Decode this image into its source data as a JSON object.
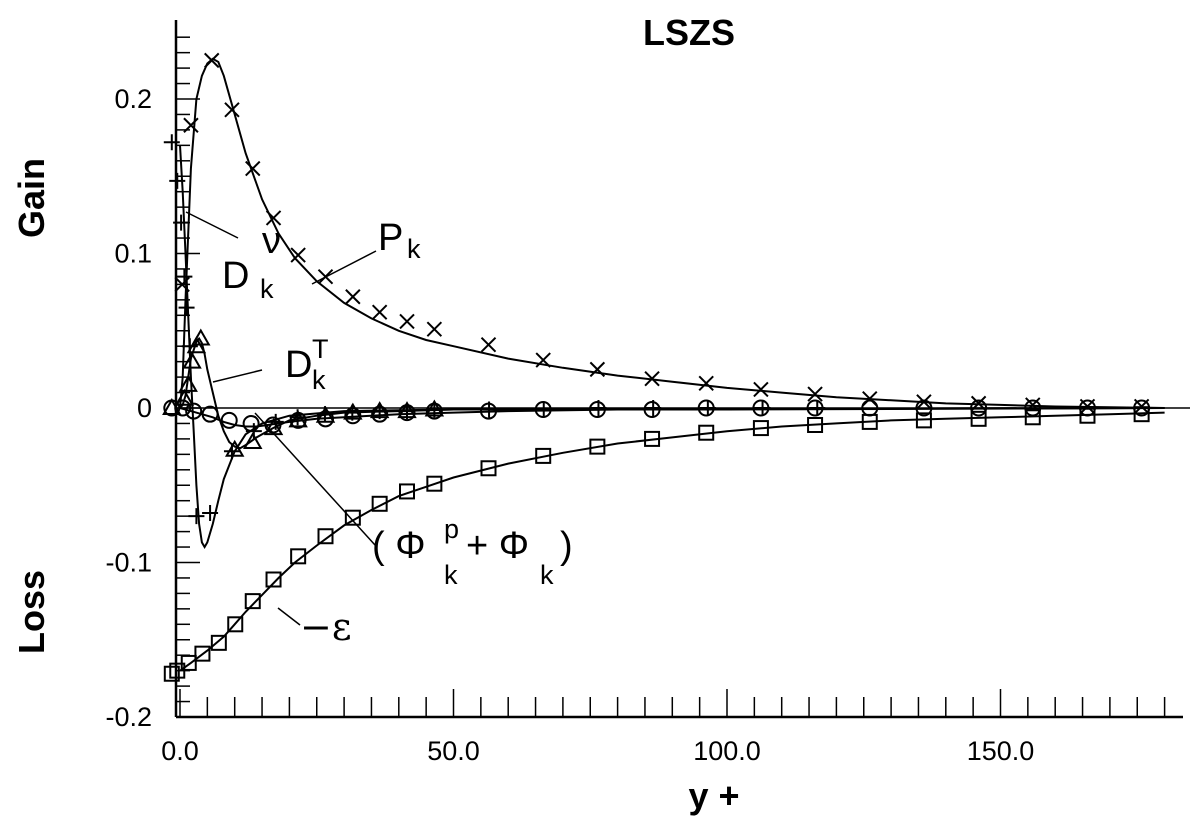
{
  "chart_data": {
    "type": "line",
    "title": "LSZS",
    "xlabel": "y +",
    "ylabel_top": "Gain",
    "ylabel_bottom": "Loss",
    "xlim": [
      -2,
      182
    ],
    "ylim": [
      -0.2,
      0.245
    ],
    "x_ticks": [
      0,
      50,
      100,
      150
    ],
    "x_tick_labels": [
      "0.0",
      "50.0",
      "100.0",
      "150.0"
    ],
    "y_ticks": [
      -0.2,
      -0.1,
      0,
      0.1,
      0.2
    ],
    "y_tick_labels": [
      "-0.2",
      "-0.1",
      "0",
      "0.1",
      "0.2"
    ],
    "grid": false,
    "series": [
      {
        "name": "P_k",
        "marker": "x",
        "curve": [
          [
            0,
            0
          ],
          [
            0.5,
            0.02
          ],
          [
            1,
            0.07
          ],
          [
            2,
            0.155
          ],
          [
            3,
            0.2
          ],
          [
            4,
            0.215
          ],
          [
            5,
            0.223
          ],
          [
            6,
            0.226
          ],
          [
            7,
            0.224
          ],
          [
            8,
            0.215
          ],
          [
            10,
            0.19
          ],
          [
            12,
            0.165
          ],
          [
            15,
            0.135
          ],
          [
            18,
            0.113
          ],
          [
            21,
            0.097
          ],
          [
            25,
            0.082
          ],
          [
            30,
            0.068
          ],
          [
            35,
            0.058
          ],
          [
            40,
            0.05
          ],
          [
            45,
            0.044
          ],
          [
            50,
            0.04
          ],
          [
            60,
            0.032
          ],
          [
            70,
            0.026
          ],
          [
            80,
            0.021
          ],
          [
            90,
            0.017
          ],
          [
            100,
            0.013
          ],
          [
            110,
            0.01
          ],
          [
            120,
            0.007
          ],
          [
            130,
            0.005
          ],
          [
            140,
            0.003
          ],
          [
            150,
            0.002
          ],
          [
            160,
            0.001
          ],
          [
            170,
            0.0005
          ],
          [
            180,
            0
          ]
        ],
        "points": [
          [
            0.4,
            0.08
          ],
          [
            2,
            0.183
          ],
          [
            5.8,
            0.225
          ],
          [
            9.5,
            0.193
          ],
          [
            13.3,
            0.155
          ],
          [
            17.1,
            0.123
          ],
          [
            21.6,
            0.099
          ],
          [
            26.6,
            0.085
          ],
          [
            31.6,
            0.072
          ],
          [
            36.5,
            0.062
          ],
          [
            41.5,
            0.056
          ],
          [
            46.5,
            0.051
          ],
          [
            56.4,
            0.041
          ],
          [
            66.4,
            0.031
          ],
          [
            76.3,
            0.025
          ],
          [
            86.3,
            0.019
          ],
          [
            96.2,
            0.016
          ],
          [
            106.2,
            0.012
          ],
          [
            116.1,
            0.009
          ],
          [
            126.1,
            0.006
          ],
          [
            136,
            0.004
          ],
          [
            146,
            0.003
          ],
          [
            155.9,
            0.002
          ],
          [
            165.9,
            0.001
          ],
          [
            175.8,
            0.001
          ]
        ]
      },
      {
        "name": "D_k^ν",
        "marker": "+",
        "curve": [
          [
            0,
            0.17
          ],
          [
            0.5,
            0.14
          ],
          [
            1,
            0.1
          ],
          [
            1.5,
            0.06
          ],
          [
            2,
            0.02
          ],
          [
            2.5,
            -0.015
          ],
          [
            3,
            -0.05
          ],
          [
            3.5,
            -0.075
          ],
          [
            4,
            -0.087
          ],
          [
            4.5,
            -0.09
          ],
          [
            5,
            -0.087
          ],
          [
            6,
            -0.075
          ],
          [
            7,
            -0.06
          ],
          [
            8,
            -0.046
          ],
          [
            10,
            -0.028
          ],
          [
            12,
            -0.017
          ],
          [
            15,
            -0.01
          ],
          [
            20,
            -0.005
          ],
          [
            30,
            -0.002
          ],
          [
            50,
            -0.001
          ],
          [
            180,
            0
          ]
        ],
        "points": [
          [
            -1.5,
            0.172
          ],
          [
            -0.5,
            0.147
          ],
          [
            0.2,
            0.12
          ],
          [
            0.8,
            0.085
          ],
          [
            1.2,
            0.065
          ],
          [
            1.8,
            0.04
          ],
          [
            3,
            -0.07
          ],
          [
            5.5,
            -0.068
          ],
          [
            9.5,
            -0.028
          ],
          [
            13.5,
            -0.015
          ],
          [
            17.5,
            -0.009
          ],
          [
            21.5,
            -0.006
          ],
          [
            26.5,
            -0.004
          ],
          [
            31.5,
            -0.003
          ],
          [
            36.5,
            -0.002
          ],
          [
            41.5,
            -0.002
          ],
          [
            46.5,
            -0.001
          ],
          [
            56.5,
            -0.001
          ],
          [
            66.5,
            -0.001
          ],
          [
            76.5,
            0
          ],
          [
            86.5,
            0
          ],
          [
            96.5,
            0
          ],
          [
            106.5,
            0
          ],
          [
            116.5,
            0
          ]
        ]
      },
      {
        "name": "D_k^T",
        "marker": "triangle",
        "curve": [
          [
            0,
            0
          ],
          [
            0.5,
            0.002
          ],
          [
            1,
            0.008
          ],
          [
            1.5,
            0.02
          ],
          [
            2,
            0.032
          ],
          [
            3,
            0.043
          ],
          [
            3.5,
            0.045
          ],
          [
            4,
            0.042
          ],
          [
            4.5,
            0.035
          ],
          [
            5,
            0.025
          ],
          [
            6,
            0.01
          ],
          [
            7,
            -0.005
          ],
          [
            8,
            -0.015
          ],
          [
            9,
            -0.022
          ],
          [
            10,
            -0.025
          ],
          [
            11,
            -0.026
          ],
          [
            12,
            -0.024
          ],
          [
            14,
            -0.019
          ],
          [
            17,
            -0.013
          ],
          [
            20,
            -0.008
          ],
          [
            25,
            -0.005
          ],
          [
            30,
            -0.003
          ],
          [
            40,
            -0.002
          ],
          [
            50,
            -0.001
          ],
          [
            180,
            0
          ]
        ],
        "points": [
          [
            -1.5,
            0
          ],
          [
            0.8,
            0.006
          ],
          [
            1.5,
            0.015
          ],
          [
            2.2,
            0.03
          ],
          [
            3,
            0.04
          ],
          [
            3.8,
            0.045
          ],
          [
            10,
            -0.027
          ],
          [
            13.3,
            -0.022
          ],
          [
            17.1,
            -0.013
          ],
          [
            21.6,
            -0.008
          ],
          [
            26.6,
            -0.005
          ],
          [
            31.6,
            -0.003
          ],
          [
            36.5,
            -0.002
          ],
          [
            41.5,
            -0.002
          ],
          [
            46.5,
            -0.001
          ]
        ]
      },
      {
        "name": "(Φ_k^p + Φ_k)",
        "marker": "circle",
        "curve": [
          [
            0,
            0
          ],
          [
            2,
            -0.002
          ],
          [
            4,
            -0.004
          ],
          [
            6,
            -0.006
          ],
          [
            8,
            -0.009
          ],
          [
            10,
            -0.011
          ],
          [
            12,
            -0.012
          ],
          [
            14,
            -0.012
          ],
          [
            16,
            -0.011
          ],
          [
            18,
            -0.01
          ],
          [
            20,
            -0.009
          ],
          [
            25,
            -0.007
          ],
          [
            30,
            -0.006
          ],
          [
            40,
            -0.004
          ],
          [
            50,
            -0.003
          ],
          [
            60,
            -0.002
          ],
          [
            80,
            -0.001
          ],
          [
            100,
            -0.001
          ],
          [
            180,
            0
          ]
        ],
        "points": [
          [
            -1.5,
            0
          ],
          [
            0.5,
            0
          ],
          [
            2.5,
            -0.002
          ],
          [
            5.5,
            -0.004
          ],
          [
            9,
            -0.008
          ],
          [
            13,
            -0.01
          ],
          [
            17,
            -0.011
          ],
          [
            21.6,
            -0.008
          ],
          [
            26.6,
            -0.007
          ],
          [
            31.6,
            -0.005
          ],
          [
            36.5,
            -0.004
          ],
          [
            41.5,
            -0.003
          ],
          [
            46.5,
            -0.002
          ],
          [
            56.4,
            -0.002
          ],
          [
            66.4,
            -0.001
          ],
          [
            76.3,
            -0.001
          ],
          [
            86.3,
            -0.001
          ],
          [
            96.2,
            0
          ],
          [
            106.2,
            0
          ],
          [
            116.1,
            0
          ],
          [
            126.1,
            0
          ],
          [
            136,
            0
          ],
          [
            146,
            0
          ],
          [
            155.9,
            0
          ],
          [
            165.9,
            0
          ],
          [
            175.8,
            0
          ]
        ]
      },
      {
        "name": "−ε",
        "marker": "square",
        "curve": [
          [
            0,
            -0.17
          ],
          [
            2,
            -0.165
          ],
          [
            5,
            -0.157
          ],
          [
            8,
            -0.148
          ],
          [
            10,
            -0.14
          ],
          [
            12,
            -0.132
          ],
          [
            15,
            -0.121
          ],
          [
            18,
            -0.11
          ],
          [
            21,
            -0.1
          ],
          [
            25,
            -0.089
          ],
          [
            30,
            -0.076
          ],
          [
            35,
            -0.066
          ],
          [
            40,
            -0.057
          ],
          [
            45,
            -0.051
          ],
          [
            50,
            -0.045
          ],
          [
            60,
            -0.036
          ],
          [
            70,
            -0.029
          ],
          [
            80,
            -0.023
          ],
          [
            90,
            -0.019
          ],
          [
            100,
            -0.015
          ],
          [
            110,
            -0.012
          ],
          [
            120,
            -0.01
          ],
          [
            130,
            -0.008
          ],
          [
            140,
            -0.007
          ],
          [
            150,
            -0.006
          ],
          [
            160,
            -0.005
          ],
          [
            170,
            -0.004
          ],
          [
            180,
            -0.003
          ]
        ],
        "points": [
          [
            -1.5,
            -0.172
          ],
          [
            -0.5,
            -0.17
          ],
          [
            1.6,
            -0.165
          ],
          [
            4.1,
            -0.159
          ],
          [
            7.1,
            -0.152
          ],
          [
            10.1,
            -0.14
          ],
          [
            13.3,
            -0.125
          ],
          [
            17.1,
            -0.111
          ],
          [
            21.6,
            -0.096
          ],
          [
            26.6,
            -0.083
          ],
          [
            31.6,
            -0.071
          ],
          [
            36.5,
            -0.062
          ],
          [
            41.5,
            -0.054
          ],
          [
            46.5,
            -0.049
          ],
          [
            56.4,
            -0.039
          ],
          [
            66.4,
            -0.031
          ],
          [
            76.3,
            -0.025
          ],
          [
            86.3,
            -0.02
          ],
          [
            96.2,
            -0.016
          ],
          [
            106.2,
            -0.013
          ],
          [
            116.1,
            -0.011
          ],
          [
            126.1,
            -0.009
          ],
          [
            136,
            -0.008
          ],
          [
            146,
            -0.007
          ],
          [
            155.9,
            -0.006
          ],
          [
            165.9,
            -0.005
          ],
          [
            175.8,
            -0.004
          ]
        ]
      }
    ],
    "annotations": [
      {
        "base": "P",
        "sub": "k"
      },
      {
        "base": "D",
        "sub": "k",
        "sup": "ν"
      },
      {
        "base": "D",
        "sub": "k",
        "sup": "T"
      },
      {
        "base": "( Φ",
        "sub": "k",
        "sup": "p",
        "mid": "+  Φ",
        "sub2": "k",
        "end": ")"
      },
      {
        "base": "−ε"
      }
    ]
  }
}
